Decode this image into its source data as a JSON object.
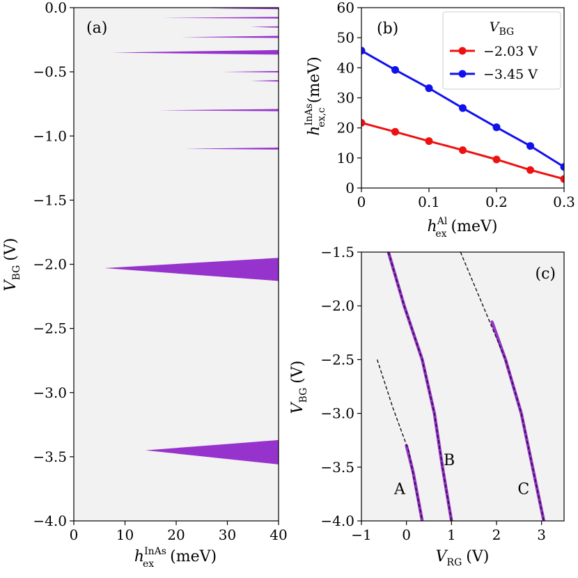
{
  "chart_data": [
    {
      "panel": "a",
      "type": "area",
      "panel_label": "(a)",
      "xlabel": {
        "main": "h",
        "sub": "ex",
        "sup": "InAs",
        "unit": "(meV)"
      },
      "ylabel": {
        "main": "V",
        "sub": "BG",
        "unit": "(V)"
      },
      "xlim": [
        0,
        40
      ],
      "ylim": [
        -4.0,
        0.0
      ],
      "xticks": [
        "0",
        "10",
        "20",
        "30",
        "40"
      ],
      "yticks": [
        "0.0",
        "−0.5",
        "−1.0",
        "−1.5",
        "−2.0",
        "−2.5",
        "−3.0",
        "−3.5",
        "−4.0"
      ],
      "background_color": "#f2f2f2",
      "fill_color": "#9633cc",
      "regions": [
        {
          "tip_x": 26.0,
          "tip_y": -0.005,
          "y_top_at_edge": 0.0,
          "y_bot_at_edge": -0.012
        },
        {
          "tip_x": 17.5,
          "tip_y": -0.08,
          "y_top_at_edge": -0.072,
          "y_bot_at_edge": -0.085
        },
        {
          "tip_x": 34.5,
          "tip_y": -0.15,
          "y_top_at_edge": -0.145,
          "y_bot_at_edge": -0.156
        },
        {
          "tip_x": 21.0,
          "tip_y": -0.23,
          "y_top_at_edge": -0.22,
          "y_bot_at_edge": -0.236
        },
        {
          "tip_x": 7.5,
          "tip_y": -0.35,
          "y_top_at_edge": -0.33,
          "y_bot_at_edge": -0.366
        },
        {
          "tip_x": 29.0,
          "tip_y": -0.5,
          "y_top_at_edge": -0.494,
          "y_bot_at_edge": -0.505
        },
        {
          "tip_x": 34.5,
          "tip_y": -0.57,
          "y_top_at_edge": -0.565,
          "y_bot_at_edge": -0.576
        },
        {
          "tip_x": 16.5,
          "tip_y": -0.8,
          "y_top_at_edge": -0.79,
          "y_bot_at_edge": -0.807
        },
        {
          "tip_x": 21.5,
          "tip_y": -1.1,
          "y_top_at_edge": -1.09,
          "y_bot_at_edge": -1.106
        },
        {
          "tip_x": 6.0,
          "tip_y": -2.03,
          "y_top_at_edge": -1.95,
          "y_bot_at_edge": -2.13
        },
        {
          "tip_x": 14.0,
          "tip_y": -3.45,
          "y_top_at_edge": -3.37,
          "y_bot_at_edge": -3.56
        }
      ]
    },
    {
      "panel": "b",
      "type": "line",
      "panel_label": "(b)",
      "xlabel": {
        "main": "h",
        "sub": "ex",
        "sup": "Al",
        "unit": "(meV)"
      },
      "ylabel": {
        "main": "h",
        "sub": "ex,c",
        "sup": "InAs",
        "unit": "(meV)"
      },
      "xlim": [
        0,
        0.3
      ],
      "ylim": [
        0,
        60
      ],
      "xticks": [
        "0",
        "0.1",
        "0.2",
        "0.3"
      ],
      "yticks": [
        "0",
        "10",
        "20",
        "30",
        "40",
        "50",
        "60"
      ],
      "legend_title": {
        "main": "V",
        "sub": "BG"
      },
      "legend_position": "top-right",
      "x": [
        0,
        0.05,
        0.1,
        0.15,
        0.2,
        0.25,
        0.3
      ],
      "series": [
        {
          "name": "−2.03 V",
          "color": "#ee1111",
          "values": [
            21.7,
            18.7,
            15.6,
            12.6,
            9.5,
            6.0,
            3.0
          ]
        },
        {
          "name": "−3.45 V",
          "color": "#1111ee",
          "values": [
            45.7,
            39.3,
            33.2,
            26.6,
            20.2,
            14.0,
            7.0
          ]
        }
      ]
    },
    {
      "panel": "c",
      "type": "line",
      "panel_label": "(c)",
      "xlabel": {
        "main": "V",
        "sub": "RG",
        "unit": "(V)"
      },
      "ylabel": {
        "main": "V",
        "sub": "BG",
        "unit": "(V)"
      },
      "xlim": [
        -1,
        3.5
      ],
      "ylim": [
        -4.0,
        -1.5
      ],
      "xticks": [
        "−1",
        "0",
        "1",
        "2",
        "3"
      ],
      "yticks": [
        "−1.5",
        "−2.0",
        "−2.5",
        "−3.0",
        "−3.5",
        "−4.0"
      ],
      "background_color": "#f2f2f2",
      "curve_color": "#9633cc",
      "dashed_color": "#111111",
      "curves": [
        {
          "label": "A",
          "dashed": [
            [
              -0.65,
              -2.5
            ],
            [
              -0.3,
              -2.95
            ],
            [
              0.05,
              -3.35
            ],
            [
              0.35,
              -4.0
            ]
          ],
          "solid": [
            [
              0.0,
              -3.3
            ],
            [
              0.15,
              -3.55
            ],
            [
              0.35,
              -4.0
            ]
          ]
        },
        {
          "label": "B",
          "dashed": [
            [
              -0.4,
              -1.5
            ],
            [
              -0.05,
              -2.0
            ],
            [
              0.35,
              -2.5
            ],
            [
              0.62,
              -3.0
            ],
            [
              0.8,
              -3.5
            ],
            [
              1.0,
              -4.0
            ]
          ],
          "solid": [
            [
              -0.4,
              -1.5
            ],
            [
              -0.05,
              -2.0
            ],
            [
              0.35,
              -2.5
            ],
            [
              0.62,
              -3.0
            ],
            [
              0.8,
              -3.5
            ],
            [
              1.0,
              -4.0
            ]
          ]
        },
        {
          "label": "C",
          "dashed": [
            [
              1.2,
              -1.5
            ],
            [
              1.7,
              -2.0
            ],
            [
              2.2,
              -2.5
            ],
            [
              2.55,
              -3.0
            ],
            [
              2.8,
              -3.5
            ],
            [
              3.05,
              -4.0
            ]
          ],
          "solid": [
            [
              1.9,
              -2.15
            ],
            [
              2.2,
              -2.5
            ],
            [
              2.55,
              -3.0
            ],
            [
              2.8,
              -3.5
            ],
            [
              3.05,
              -4.0
            ]
          ]
        }
      ],
      "curve_labels": [
        {
          "text": "A",
          "x": -0.15,
          "y": -3.7
        },
        {
          "text": "B",
          "x": 0.95,
          "y": -3.43
        },
        {
          "text": "C",
          "x": 2.6,
          "y": -3.7
        }
      ]
    }
  ]
}
